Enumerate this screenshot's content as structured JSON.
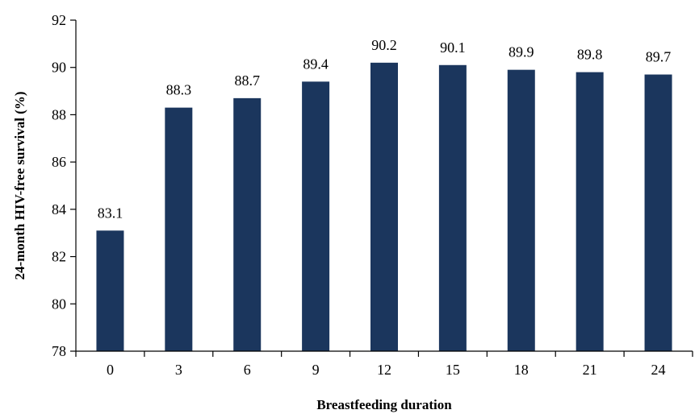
{
  "chart_data": {
    "type": "bar",
    "title": "",
    "xlabel": "Breastfeeding duration",
    "ylabel": "24-month HIV-free survival (%)",
    "categories": [
      "0",
      "3",
      "6",
      "9",
      "12",
      "15",
      "18",
      "21",
      "24"
    ],
    "values": [
      83.1,
      88.3,
      88.7,
      89.4,
      90.2,
      90.1,
      89.9,
      89.8,
      89.7
    ],
    "data_labels": [
      "83.1",
      "88.3",
      "88.7",
      "89.4",
      "90.2",
      "90.1",
      "89.9",
      "89.8",
      "89.7"
    ],
    "ylim": [
      78,
      92
    ],
    "yticks": [
      78,
      80,
      82,
      84,
      86,
      88,
      90,
      92
    ],
    "bar_color": "#1b365d",
    "grid": false,
    "legend": "none"
  }
}
